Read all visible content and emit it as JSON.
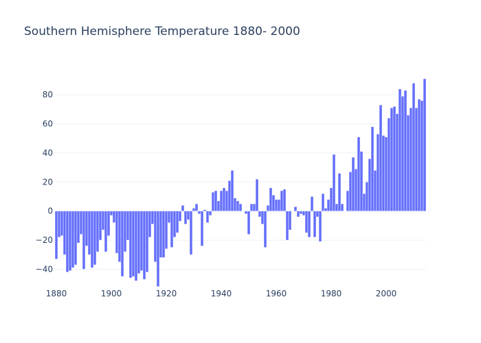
{
  "chart_data": {
    "type": "bar",
    "title": "Southern Hemisphere Temperature 1880- 2000",
    "xlabel": "",
    "ylabel": "",
    "xlim": [
      1879.5,
      2014.5
    ],
    "ylim": [
      -53,
      98
    ],
    "x_ticks": [
      1880,
      1900,
      1920,
      1940,
      1960,
      1980,
      2000
    ],
    "x_tick_labels": [
      "1880",
      "1900",
      "1920",
      "1940",
      "1960",
      "1980",
      "2000"
    ],
    "y_ticks": [
      -40,
      -20,
      0,
      20,
      40,
      60,
      80
    ],
    "y_tick_labels": [
      "−40",
      "−20",
      "0",
      "20",
      "40",
      "60",
      "80"
    ],
    "grid": true,
    "bar_color": "#636efa",
    "x": [
      1880,
      1881,
      1882,
      1883,
      1884,
      1885,
      1886,
      1887,
      1888,
      1889,
      1890,
      1891,
      1892,
      1893,
      1894,
      1895,
      1896,
      1897,
      1898,
      1899,
      1900,
      1901,
      1902,
      1903,
      1904,
      1905,
      1906,
      1907,
      1908,
      1909,
      1910,
      1911,
      1912,
      1913,
      1914,
      1915,
      1916,
      1917,
      1918,
      1919,
      1920,
      1921,
      1922,
      1923,
      1924,
      1925,
      1926,
      1927,
      1928,
      1929,
      1930,
      1931,
      1932,
      1933,
      1934,
      1935,
      1936,
      1937,
      1938,
      1939,
      1940,
      1941,
      1942,
      1943,
      1944,
      1945,
      1946,
      1947,
      1948,
      1949,
      1950,
      1951,
      1952,
      1953,
      1954,
      1955,
      1956,
      1957,
      1958,
      1959,
      1960,
      1961,
      1962,
      1963,
      1964,
      1965,
      1966,
      1967,
      1968,
      1969,
      1970,
      1971,
      1972,
      1973,
      1974,
      1975,
      1976,
      1977,
      1978,
      1979,
      1980,
      1981,
      1982,
      1983,
      1984,
      1985,
      1986,
      1987,
      1988,
      1989,
      1990,
      1991,
      1992,
      1993,
      1994,
      1995,
      1996,
      1997,
      1998,
      1999,
      2000,
      2001,
      2002,
      2003,
      2004,
      2005,
      2006,
      2007,
      2008,
      2009,
      2010,
      2011,
      2012,
      2013,
      2014
    ],
    "values": [
      -33,
      -18,
      -17,
      -30,
      -42,
      -41,
      -39,
      -37,
      -22,
      -16,
      -40,
      -24,
      -30,
      -39,
      -37,
      -28,
      -20,
      -13,
      -28,
      -17,
      -3,
      -8,
      -29,
      -35,
      -45,
      -28,
      -20,
      -46,
      -45,
      -48,
      -43,
      -41,
      -47,
      -42,
      -18,
      -9,
      -35,
      -52,
      -32,
      -32,
      -26,
      -8,
      -25,
      -18,
      -15,
      -7,
      4,
      -9,
      -6,
      -30,
      2,
      5,
      -2,
      -24,
      1,
      -8,
      -3,
      13,
      14,
      7,
      14,
      16,
      14,
      21,
      28,
      9,
      7,
      5,
      0,
      -2,
      -16,
      5,
      5,
      22,
      -4,
      -9,
      -25,
      4,
      16,
      11,
      8,
      8,
      14,
      15,
      -20,
      -13,
      0,
      3,
      -4,
      -2,
      -3,
      -15,
      -18,
      10,
      -18,
      -4,
      -21,
      12,
      2,
      8,
      16,
      39,
      5,
      26,
      5,
      0,
      14,
      27,
      37,
      29,
      51,
      41,
      12,
      20,
      36,
      58,
      28,
      53,
      73,
      52,
      51,
      64,
      71,
      72,
      67,
      84,
      79,
      83,
      66,
      71,
      88,
      71,
      77,
      76,
      91
    ]
  }
}
